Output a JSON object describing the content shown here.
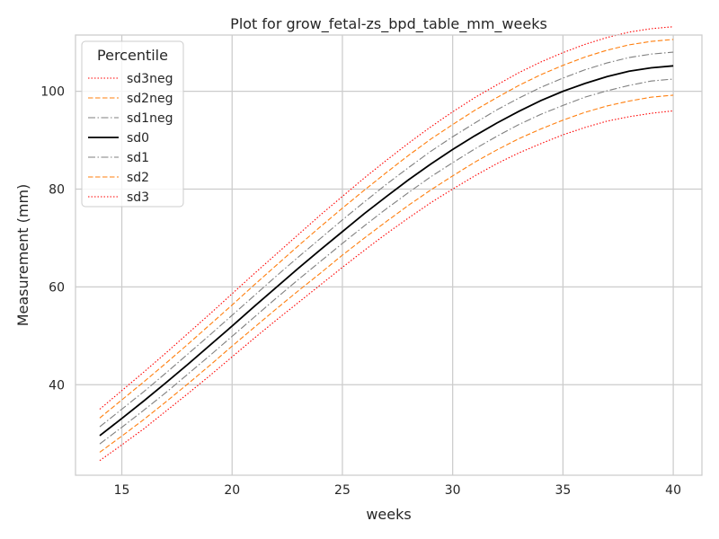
{
  "chart_data": {
    "type": "line",
    "title": "Plot for grow_fetal-zs_bpd_table_mm_weeks",
    "xlabel": "weeks",
    "ylabel": "Measurement (mm)",
    "xlim": [
      12.9,
      41.3
    ],
    "ylim": [
      21.5,
      111.5
    ],
    "xticks": [
      15,
      20,
      25,
      30,
      35,
      40
    ],
    "yticks": [
      40,
      60,
      80,
      100
    ],
    "grid": true,
    "legend": {
      "title": "Percentile",
      "placement": "top-left"
    },
    "x": [
      14,
      15,
      16,
      17,
      18,
      19,
      20,
      21,
      22,
      23,
      24,
      25,
      26,
      27,
      28,
      29,
      30,
      31,
      32,
      33,
      34,
      35,
      36,
      37,
      38,
      39,
      40
    ],
    "series": [
      {
        "name": "sd3neg",
        "color": "#ff0000",
        "dash": "dotted",
        "values": [
          24.5,
          27.7,
          31.0,
          34.6,
          38.2,
          41.9,
          45.7,
          49.5,
          53.2,
          56.8,
          60.4,
          64.0,
          67.5,
          70.9,
          74.1,
          77.2,
          80.0,
          82.7,
          85.2,
          87.4,
          89.3,
          91.1,
          92.6,
          93.9,
          94.8,
          95.5,
          96.0
        ]
      },
      {
        "name": "sd2neg",
        "color": "#ff7f0e",
        "dash": "dashed",
        "values": [
          26.2,
          29.5,
          32.9,
          36.5,
          40.2,
          44.0,
          47.9,
          51.7,
          55.5,
          59.2,
          62.8,
          66.5,
          70.0,
          73.4,
          76.7,
          79.8,
          82.7,
          85.5,
          88.0,
          90.3,
          92.3,
          94.1,
          95.7,
          97.0,
          98.0,
          98.8,
          99.2
        ]
      },
      {
        "name": "sd1neg",
        "color": "#7f7f7f",
        "dash": "dashdot",
        "values": [
          27.9,
          31.3,
          34.8,
          38.4,
          42.2,
          46.0,
          49.9,
          53.8,
          57.7,
          61.5,
          65.2,
          68.9,
          72.5,
          76.0,
          79.3,
          82.5,
          85.4,
          88.2,
          90.8,
          93.2,
          95.3,
          97.1,
          98.8,
          100.1,
          101.2,
          102.1,
          102.5
        ]
      },
      {
        "name": "sd0",
        "color": "#000000",
        "dash": "solid",
        "values": [
          29.6,
          33.1,
          36.7,
          40.4,
          44.2,
          48.1,
          52.0,
          56.0,
          59.9,
          63.8,
          67.6,
          71.3,
          75.0,
          78.5,
          81.9,
          85.1,
          88.1,
          90.9,
          93.5,
          95.9,
          98.1,
          100.0,
          101.6,
          103.0,
          104.1,
          104.8,
          105.2
        ]
      },
      {
        "name": "sd1",
        "color": "#7f7f7f",
        "dash": "dashdot",
        "values": [
          31.4,
          35.0,
          38.6,
          42.4,
          46.3,
          50.2,
          54.2,
          58.2,
          62.2,
          66.1,
          69.9,
          73.7,
          77.4,
          81.0,
          84.4,
          87.7,
          90.7,
          93.5,
          96.2,
          98.6,
          100.8,
          102.7,
          104.4,
          105.8,
          106.9,
          107.6,
          108.0
        ]
      },
      {
        "name": "sd2",
        "color": "#ff7f0e",
        "dash": "dashed",
        "values": [
          33.2,
          36.9,
          40.6,
          44.4,
          48.3,
          52.3,
          56.3,
          60.4,
          64.4,
          68.4,
          72.3,
          76.1,
          79.8,
          83.4,
          86.9,
          90.2,
          93.2,
          96.1,
          98.7,
          101.2,
          103.4,
          105.3,
          107.0,
          108.4,
          109.5,
          110.2,
          110.6
        ]
      },
      {
        "name": "sd3",
        "color": "#ff0000",
        "dash": "dotted",
        "values": [
          35.0,
          38.8,
          42.6,
          46.5,
          50.5,
          54.5,
          58.6,
          62.7,
          66.7,
          70.7,
          74.7,
          78.5,
          82.3,
          85.9,
          89.4,
          92.7,
          95.8,
          98.7,
          101.3,
          103.8,
          106.0,
          107.9,
          109.6,
          111.0,
          112.1,
          112.8,
          113.2
        ]
      }
    ]
  }
}
